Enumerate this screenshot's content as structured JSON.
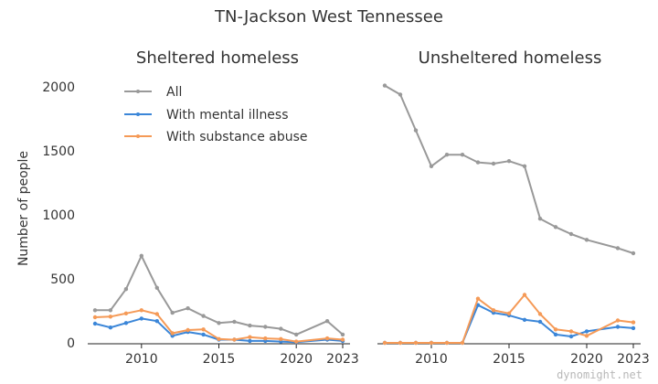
{
  "chart_data": {
    "type": "line",
    "title": "TN-Jackson West Tennessee",
    "ylabel": "Number of people",
    "xlim": [
      2007,
      2023
    ],
    "ylim": [
      0,
      2000
    ],
    "yticks": [
      0,
      500,
      1000,
      1500,
      2000
    ],
    "xticks": [
      2010,
      2015,
      2020,
      2023
    ],
    "x": [
      2007,
      2008,
      2009,
      2010,
      2011,
      2012,
      2013,
      2014,
      2015,
      2016,
      2017,
      2018,
      2019,
      2020,
      2022,
      2023
    ],
    "legend": [
      "All",
      "With mental illness",
      "With substance abuse"
    ],
    "colors": {
      "all": "#999999",
      "mental": "#3b86d8",
      "substance": "#f59a57"
    },
    "panels": [
      {
        "title": "Sheltered homeless",
        "series": [
          {
            "name": "All",
            "values": [
              255,
              255,
              420,
              680,
              430,
              235,
              270,
              210,
              155,
              165,
              135,
              125,
              110,
              65,
              170,
              65
            ]
          },
          {
            "name": "With mental illness",
            "values": [
              150,
              120,
              155,
              190,
              170,
              55,
              85,
              65,
              25,
              25,
              15,
              15,
              10,
              5,
              25,
              15
            ]
          },
          {
            "name": "With substance abuse",
            "values": [
              200,
              205,
              230,
              255,
              225,
              75,
              100,
              105,
              30,
              25,
              45,
              35,
              30,
              10,
              35,
              25
            ]
          }
        ]
      },
      {
        "title": "Unsheltered homeless",
        "series": [
          {
            "name": "All",
            "values": [
              2010,
              1940,
              1660,
              1380,
              1470,
              1470,
              1410,
              1400,
              1420,
              1380,
              970,
              905,
              850,
              805,
              740,
              700
            ]
          },
          {
            "name": "With mental illness",
            "values": [
              0,
              0,
              0,
              0,
              0,
              0,
              295,
              235,
              215,
              180,
              165,
              65,
              50,
              90,
              125,
              115
            ]
          },
          {
            "name": "With substance abuse",
            "values": [
              0,
              0,
              0,
              0,
              0,
              0,
              345,
              255,
              230,
              375,
              225,
              105,
              90,
              55,
              175,
              160
            ]
          }
        ]
      }
    ]
  },
  "watermark": "dynomight.net"
}
